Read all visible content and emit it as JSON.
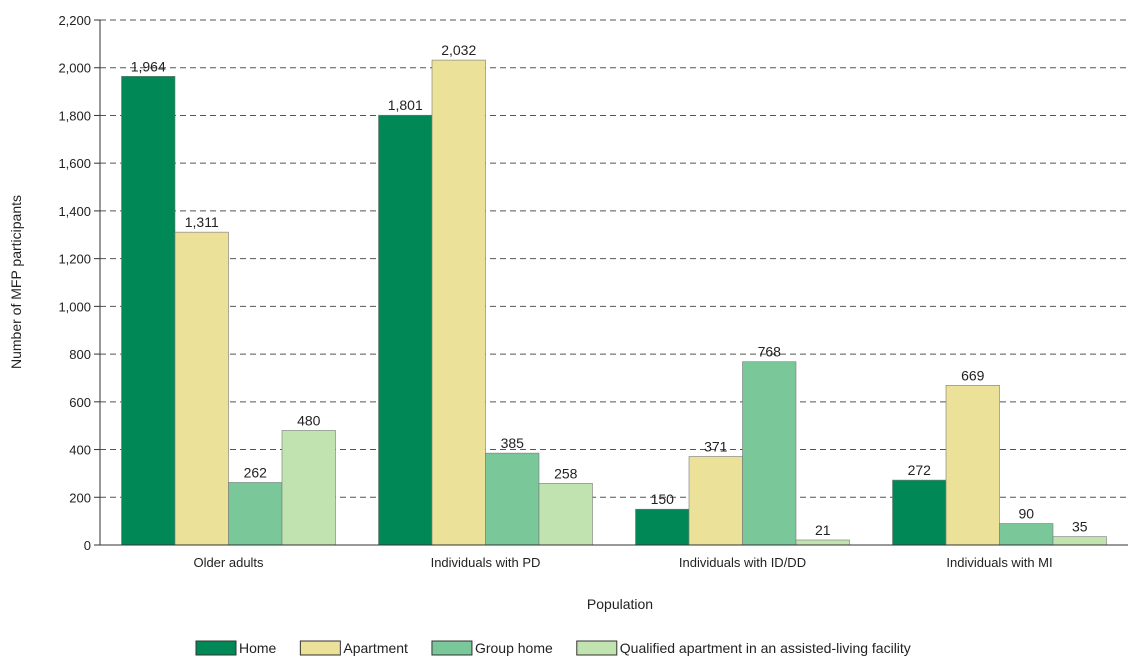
{
  "chart_data": {
    "type": "bar",
    "title": "",
    "xlabel": "Population",
    "ylabel": "Number of MFP participants",
    "ylim": [
      0,
      2200
    ],
    "ytick_step": 200,
    "grid": true,
    "legend_position": "bottom",
    "categories": [
      "Older adults",
      "Individuals with PD",
      "Individuals with ID/DD",
      "Individuals with MI"
    ],
    "series": [
      {
        "name": "Home",
        "color": "#008856",
        "values": [
          1964,
          1801,
          150,
          272
        ],
        "labels": [
          "1,964",
          "1,801",
          "150",
          "272"
        ]
      },
      {
        "name": "Apartment",
        "color": "#EBE199",
        "values": [
          1311,
          2032,
          371,
          669
        ],
        "labels": [
          "1,311",
          "2,032",
          "371",
          "669"
        ]
      },
      {
        "name": "Group home",
        "color": "#7AC79A",
        "values": [
          262,
          385,
          768,
          90
        ],
        "labels": [
          "262",
          "385",
          "768",
          "90"
        ]
      },
      {
        "name": "Qualified apartment in an assisted-living facility",
        "color": "#C0E3B0",
        "values": [
          480,
          258,
          21,
          35
        ],
        "labels": [
          "480",
          "258",
          "21",
          "35"
        ]
      }
    ],
    "yticks": [
      "0",
      "200",
      "400",
      "600",
      "800",
      "1,000",
      "1,200",
      "1,400",
      "1,600",
      "1,800",
      "2,000",
      "2,200"
    ]
  }
}
